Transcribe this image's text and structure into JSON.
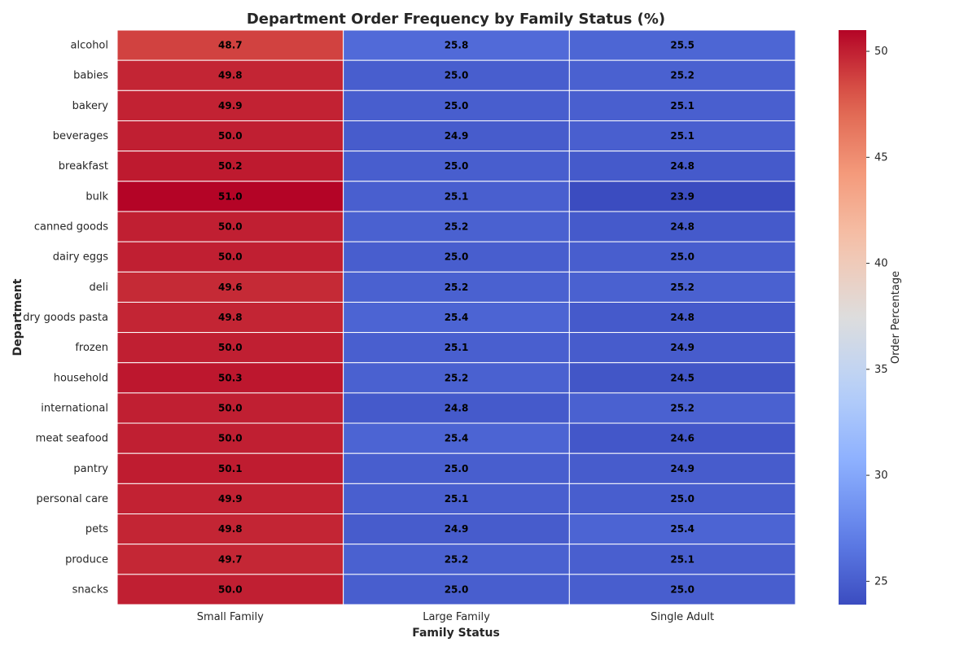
{
  "chart_data": {
    "type": "heatmap",
    "title": "Department Order Frequency by Family Status (%)",
    "xlabel": "Family Status",
    "ylabel": "Department",
    "colorbar_label": "Order Percentage",
    "colormap": "coolwarm",
    "vmin": 23.9,
    "vmax": 51.0,
    "colorbar_ticks": [
      25,
      30,
      35,
      40,
      45,
      50
    ],
    "columns": [
      "Small Family",
      "Large Family",
      "Single Adult"
    ],
    "rows": [
      "alcohol",
      "babies",
      "bakery",
      "beverages",
      "breakfast",
      "bulk",
      "canned goods",
      "dairy eggs",
      "deli",
      "dry goods pasta",
      "frozen",
      "household",
      "international",
      "meat seafood",
      "pantry",
      "personal care",
      "pets",
      "produce",
      "snacks"
    ],
    "values": [
      [
        48.7,
        25.8,
        25.5
      ],
      [
        49.8,
        25.0,
        25.2
      ],
      [
        49.9,
        25.0,
        25.1
      ],
      [
        50.0,
        24.9,
        25.1
      ],
      [
        50.2,
        25.0,
        24.8
      ],
      [
        51.0,
        25.1,
        23.9
      ],
      [
        50.0,
        25.2,
        24.8
      ],
      [
        50.0,
        25.0,
        25.0
      ],
      [
        49.6,
        25.2,
        25.2
      ],
      [
        49.8,
        25.4,
        24.8
      ],
      [
        50.0,
        25.1,
        24.9
      ],
      [
        50.3,
        25.2,
        24.5
      ],
      [
        50.0,
        24.8,
        25.2
      ],
      [
        50.0,
        25.4,
        24.6
      ],
      [
        50.1,
        25.0,
        24.9
      ],
      [
        49.9,
        25.1,
        25.0
      ],
      [
        49.8,
        24.9,
        25.4
      ],
      [
        49.7,
        25.2,
        25.1
      ],
      [
        50.0,
        25.0,
        25.0
      ]
    ]
  }
}
